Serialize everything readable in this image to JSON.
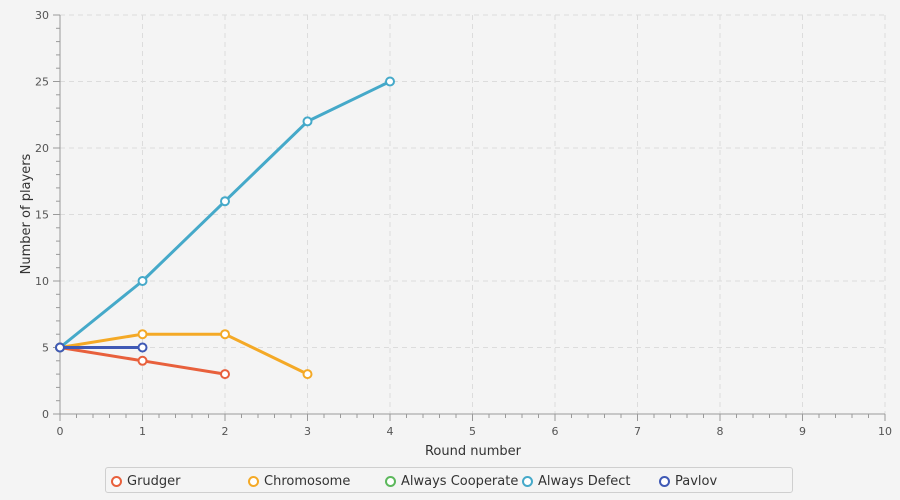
{
  "chart_data": {
    "type": "line",
    "xlabel": "Round number",
    "ylabel": "Number of players",
    "xlim": [
      0,
      10
    ],
    "ylim": [
      0,
      30
    ],
    "x_ticks": [
      0,
      1,
      2,
      3,
      4,
      5,
      6,
      7,
      8,
      9,
      10
    ],
    "y_ticks": [
      0,
      5,
      10,
      15,
      20,
      25,
      30
    ],
    "grid": true,
    "legend_position": "bottom",
    "series": [
      {
        "name": "Grudger",
        "color": "#e8603c",
        "x": [
          0,
          1,
          2
        ],
        "y": [
          5,
          4,
          3
        ]
      },
      {
        "name": "Chromosome",
        "color": "#f4a926",
        "x": [
          0,
          1,
          2,
          3
        ],
        "y": [
          5,
          6,
          6,
          3
        ]
      },
      {
        "name": "Always Cooperate",
        "color": "#5cb85c",
        "x": [],
        "y": []
      },
      {
        "name": "Always Defect",
        "color": "#45a9c9",
        "x": [
          0,
          1,
          2,
          3,
          4
        ],
        "y": [
          5,
          10,
          16,
          22,
          25
        ]
      },
      {
        "name": "Pavlov",
        "color": "#3f59b5",
        "x": [
          0,
          1
        ],
        "y": [
          5,
          5
        ]
      }
    ]
  }
}
